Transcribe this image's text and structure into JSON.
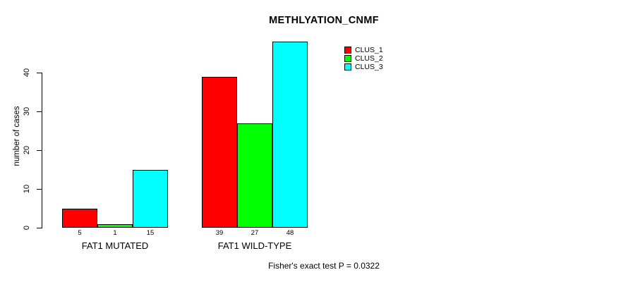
{
  "chart_data": {
    "type": "bar",
    "title": "METHLYATION_CNMF",
    "ylabel": "number of cases",
    "xlabel": "",
    "categories": [
      "FAT1 MUTATED",
      "FAT1 WILD-TYPE"
    ],
    "series": [
      {
        "name": "CLUS_1",
        "color": "#ff0000",
        "values": [
          5,
          39
        ]
      },
      {
        "name": "CLUS_2",
        "color": "#00ff00",
        "values": [
          1,
          27
        ]
      },
      {
        "name": "CLUS_3",
        "color": "#00ffff",
        "values": [
          15,
          48
        ]
      }
    ],
    "yticks": [
      0,
      10,
      20,
      30,
      40
    ],
    "ylim": [
      0,
      48
    ],
    "grid": false,
    "legend_position": "top-right",
    "bar_border_color": "#000000",
    "show_value_labels": true,
    "annotation": "Fisher's exact test P = 0.0322"
  }
}
